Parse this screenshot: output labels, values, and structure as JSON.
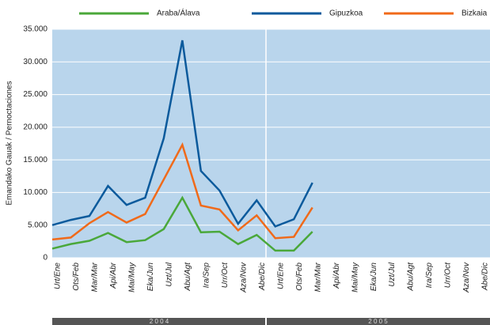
{
  "chart_data": {
    "type": "line",
    "y_label": "Emandako Gauak / Pernoctaciones",
    "categories": [
      "Urt/Ene",
      "Ots/Feb",
      "Mar/Mar",
      "Api/Abr",
      "Mai/May",
      "Eka/Jun",
      "Uzt/Jul",
      "Abu/Agt",
      "Ira/Sep",
      "Urr/Oct",
      "Aza/Nov",
      "Abe/Dic",
      "Urt/Ene",
      "Ots/Feb",
      "Mar/Mar",
      "Api/Abr",
      "Mai/May",
      "Eka/Jun",
      "Uzt/Jul",
      "Abu/Agt",
      "Ira/Sep",
      "Urr/Oct",
      "Aza/Nov",
      "Abe/Dic"
    ],
    "year_labels": [
      "2 0 0 4",
      "2 0 0 5"
    ],
    "series": [
      {
        "name": "Araba/Álava",
        "color": "#4aa83a",
        "values": [
          1400,
          2100,
          2600,
          3800,
          2400,
          2700,
          4400,
          9200,
          3900,
          4000,
          2100,
          3500,
          1100,
          1100,
          4000,
          null,
          null,
          null,
          null,
          null,
          null,
          null,
          null,
          null
        ]
      },
      {
        "name": "Gipuzkoa",
        "color": "#0b5a9c",
        "values": [
          5000,
          5800,
          6400,
          11000,
          8100,
          9200,
          18300,
          33300,
          13300,
          10300,
          5200,
          8800,
          4800,
          5900,
          11500,
          null,
          null,
          null,
          null,
          null,
          null,
          null,
          null,
          null
        ]
      },
      {
        "name": "Bizkaia",
        "color": "#f06a1a",
        "values": [
          2800,
          3100,
          5300,
          7000,
          5400,
          6700,
          12000,
          17300,
          8000,
          7400,
          4200,
          6500,
          3000,
          3200,
          7700,
          null,
          null,
          null,
          null,
          null,
          null,
          null,
          null,
          null
        ]
      }
    ],
    "ylim": [
      0,
      35000
    ],
    "yticks": [
      0,
      {
        "value": 5000,
        "label": "5.000"
      },
      {
        "value": 10000,
        "label": "10.000"
      },
      {
        "value": 15000,
        "label": "15.000"
      },
      {
        "value": 20000,
        "label": "20.000"
      },
      {
        "value": 25000,
        "label": "25.000"
      },
      {
        "value": 30000,
        "label": "30.000"
      },
      {
        "value": 35000,
        "label": "35.000"
      }
    ],
    "grid": true
  }
}
